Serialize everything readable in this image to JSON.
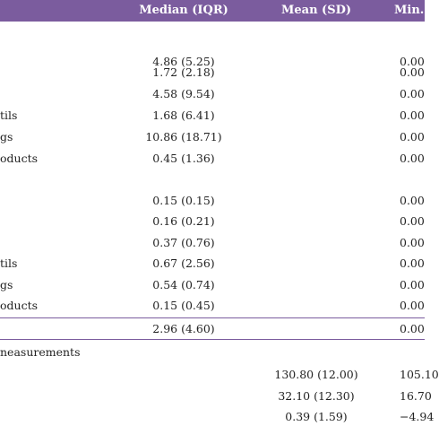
{
  "header": {
    "median": "Median (IQR)",
    "mean": "Mean (SD)",
    "min": "Min."
  },
  "rows": [
    {
      "label": "",
      "median": "4.86 (5.25)",
      "mean": "",
      "min": "0.00"
    },
    {
      "label": "",
      "median": "1.72 (2.18)",
      "mean": "",
      "min": "0.00"
    },
    {
      "label": "",
      "median": "4.58 (9.54)",
      "mean": "",
      "min": "0.00"
    },
    {
      "label": "tils",
      "median": "1.68 (6.41)",
      "mean": "",
      "min": "0.00"
    },
    {
      "label": "gs",
      "median": "10.86 (18.71)",
      "mean": "",
      "min": "0.00"
    },
    {
      "label": "oducts",
      "median": "0.45 (1.36)",
      "mean": "",
      "min": "0.00"
    },
    {
      "label": "",
      "median": "0.15 (0.15)",
      "mean": "",
      "min": "0.00"
    },
    {
      "label": "",
      "median": "0.16 (0.21)",
      "mean": "",
      "min": "0.00"
    },
    {
      "label": "",
      "median": "0.37 (0.76)",
      "mean": "",
      "min": "0.00"
    },
    {
      "label": "tils",
      "median": "0.67 (2.56)",
      "mean": "",
      "min": "0.00"
    },
    {
      "label": "gs",
      "median": "0.54 (0.74)",
      "mean": "",
      "min": "0.00"
    },
    {
      "label": "oducts",
      "median": "0.15 (0.45)",
      "mean": "",
      "min": "0.00"
    },
    {
      "label": "",
      "median": "2.96 (4.60)",
      "mean": "",
      "min": "0.00"
    },
    {
      "label": "neasurements",
      "median": "",
      "mean": "",
      "min": ""
    },
    {
      "label": "",
      "median": "",
      "mean": "130.80 (12.00)",
      "min": "105.10"
    },
    {
      "label": "",
      "median": "",
      "mean": "32.10 (12.30)",
      "min": "16.70"
    },
    {
      "label": "",
      "median": "",
      "mean": "0.39 (1.59)",
      "min": "−4.94"
    }
  ]
}
